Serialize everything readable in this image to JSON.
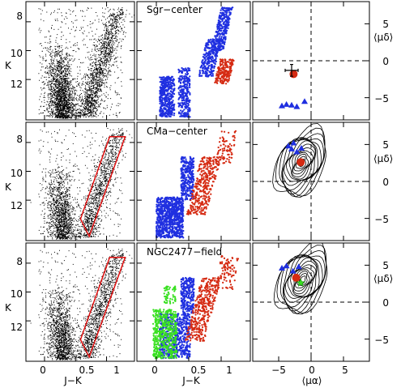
{
  "figure": {
    "type": "multi-panel scatter / color-magnitude diagram grid",
    "rows": 3,
    "columns": 3,
    "colors": {
      "field_stars": "#000000",
      "selected_blue": "#1f2fe0",
      "selected_red": "#d52a12",
      "selected_green": "#39e021",
      "selection_box": "#e01010"
    }
  },
  "chart_data": [
    {
      "type": "scatter",
      "panel": "Sgr-center CMD",
      "xlabel": "",
      "ylabel": "K",
      "xlim": [
        -0.3,
        1.45
      ],
      "ylim": [
        14.8,
        6.6
      ],
      "yticks": [
        8,
        10,
        12
      ],
      "density_regions": [
        {
          "name": "blue sequence",
          "k_range": [
            9.5,
            14.6
          ],
          "jk_range": [
            0.05,
            0.55
          ]
        },
        {
          "name": "red giant branch",
          "k_range": [
            6.8,
            14.6
          ],
          "jk_range": [
            0.55,
            1.25
          ]
        }
      ]
    },
    {
      "type": "scatter",
      "panel": "Sgr-center selected",
      "label": "Sgr−center",
      "series": [
        {
          "color": "blue",
          "description": "bright K<13, J-K 0.0-0.6 and 0.8-1.25"
        },
        {
          "color": "red",
          "description": "K 10.5-12.5, J-K 0.95-1.25"
        }
      ]
    },
    {
      "type": "scatter",
      "panel": "Sgr-center proper motion",
      "ylabel": "⟨μδ⟩",
      "xlim": [
        -9,
        9
      ],
      "ylim": [
        -8,
        8
      ],
      "yticks": [
        -5,
        0,
        5
      ],
      "series": [
        {
          "color": "red",
          "marker": "circle",
          "points": [
            [
              -2.7,
              -1.8
            ]
          ]
        },
        {
          "color": "black",
          "marker": "errorbar",
          "points": [
            [
              -3.0,
              -1.3
            ]
          ],
          "xerr": 1.0,
          "yerr": 0.8
        },
        {
          "color": "blue",
          "marker": "triangle",
          "points": [
            [
              -1.0,
              -5.5
            ],
            [
              -2.2,
              -6.2
            ],
            [
              -3.0,
              -6.0
            ],
            [
              -3.8,
              -5.9
            ],
            [
              -4.5,
              -6.1
            ]
          ]
        }
      ]
    },
    {
      "type": "scatter",
      "panel": "CMa-center CMD",
      "ylabel": "K",
      "xlim": [
        -0.3,
        1.45
      ],
      "ylim": [
        14.8,
        6.6
      ],
      "yticks": [
        8,
        10,
        12
      ],
      "selection_polygon_jk_k": [
        [
          0.72,
          14.5
        ],
        [
          0.58,
          13.3
        ],
        [
          1.05,
          7.6
        ],
        [
          1.3,
          7.6
        ]
      ]
    },
    {
      "type": "scatter",
      "panel": "CMa-center selected",
      "label": "CMa−center"
    },
    {
      "type": "scatter",
      "panel": "CMa-center proper motion",
      "ylabel": "⟨μδ⟩",
      "xlim": [
        -9,
        9
      ],
      "ylim": [
        -8,
        8
      ],
      "yticks": [
        -5,
        0,
        5
      ],
      "series": [
        {
          "color": "red",
          "marker": "circle",
          "points": [
            [
              -1.6,
              2.6
            ]
          ]
        },
        {
          "color": "blue",
          "marker": "triangle",
          "points": [
            [
              -3.5,
              4.8
            ],
            [
              -3.0,
              4.4
            ],
            [
              -2.2,
              4.0
            ],
            [
              -1.5,
              4.5
            ],
            [
              -2.7,
              5.2
            ]
          ]
        }
      ],
      "contours": "nested black density contours centred near (-1.5, 2.5)"
    },
    {
      "type": "scatter",
      "panel": "NGC2477-field CMD",
      "xlabel": "J−K",
      "ylabel": "K",
      "xlim": [
        -0.3,
        1.45
      ],
      "ylim": [
        14.8,
        6.6
      ],
      "xticks": [
        0,
        0.5,
        1
      ],
      "yticks": [
        8,
        10,
        12
      ],
      "selection_polygon_jk_k": [
        [
          0.72,
          14.5
        ],
        [
          0.58,
          13.3
        ],
        [
          1.05,
          7.6
        ],
        [
          1.3,
          7.6
        ]
      ]
    },
    {
      "type": "scatter",
      "panel": "NGC2477-field selected",
      "label": "NGC2477−field",
      "xlabel": "J−K",
      "xticks": [
        0,
        0.5,
        1
      ]
    },
    {
      "type": "scatter",
      "panel": "NGC2477-field proper motion",
      "xlabel": "⟨μα⟩",
      "ylabel": "⟨μδ⟩",
      "xlim": [
        -9,
        9
      ],
      "ylim": [
        -8,
        8
      ],
      "xticks": [
        -5,
        0,
        5
      ],
      "yticks": [
        -5,
        0,
        5
      ],
      "series": [
        {
          "color": "red",
          "marker": "circle",
          "points": [
            [
              -2.3,
              3.3
            ]
          ]
        },
        {
          "color": "green",
          "marker": "star",
          "points": [
            [
              -1.6,
              2.6
            ]
          ]
        },
        {
          "color": "blue",
          "marker": "triangle",
          "points": [
            [
              -4.5,
              4.6
            ],
            [
              -3.8,
              4.9
            ],
            [
              -2.8,
              4.2
            ],
            [
              -1.9,
              4.8
            ]
          ]
        }
      ],
      "contours": "nested black density contours centred near (-1.3, 3.0)"
    }
  ],
  "labels": {
    "sgr": "Sgr−center",
    "cma": "CMa−center",
    "ngc": "NGC2477−field",
    "k_axis": "K",
    "jk_axis": "J−K",
    "pma_axis": "⟨μα⟩",
    "pmd_axis": "⟨μδ⟩",
    "k_ticks": [
      "8",
      "10",
      "12"
    ],
    "jk_ticks": [
      "0",
      "0.5",
      "1"
    ],
    "pma_ticks": [
      "−5",
      "0",
      "5"
    ],
    "pmd_ticks": [
      "5",
      "0",
      "−5"
    ]
  }
}
